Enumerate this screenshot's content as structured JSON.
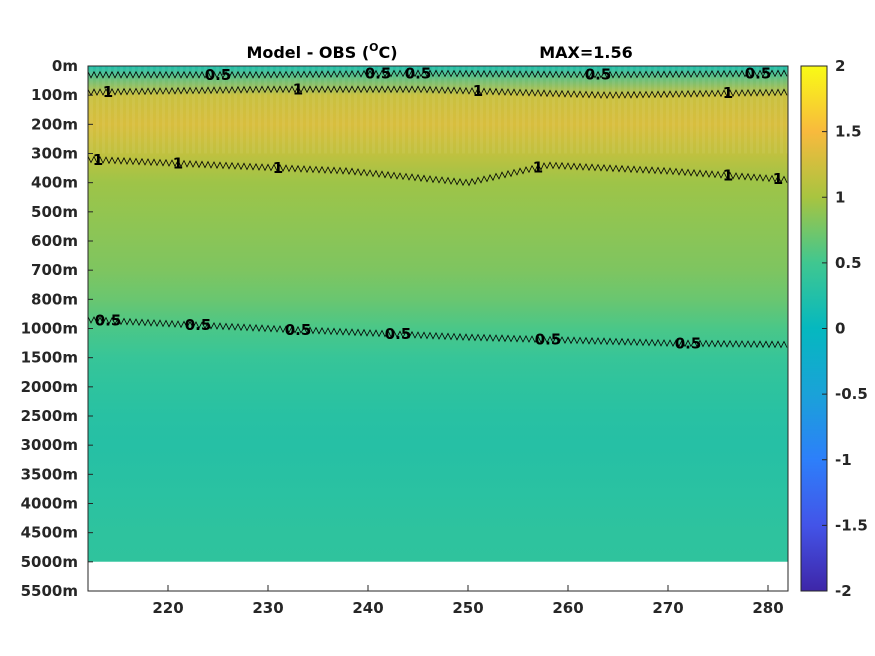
{
  "chart_data": {
    "type": "heatmap",
    "title": "Model - OBS (",
    "title_unit_sup": "O",
    "title_unit": "C)",
    "max_label": "MAX=1.56",
    "xlim": [
      212,
      282
    ],
    "x_ticks": [
      220,
      230,
      240,
      250,
      260,
      270,
      280
    ],
    "y_ticks": [
      "0m",
      "100m",
      "200m",
      "300m",
      "400m",
      "500m",
      "600m",
      "700m",
      "800m",
      "1000m",
      "1500m",
      "2000m",
      "2500m",
      "3000m",
      "3500m",
      "4000m",
      "4500m",
      "5000m",
      "5500m"
    ],
    "colorbar": {
      "min": -2,
      "max": 2,
      "ticks": [
        "2",
        "1.5",
        "1",
        "0.5",
        "0",
        "-0.5",
        "-1",
        "-1.5",
        "-2"
      ]
    },
    "depth_profile": [
      {
        "depth": "0m",
        "value": 0.2
      },
      {
        "depth": "100m",
        "value": 1.2
      },
      {
        "depth": "200m",
        "value": 1.3
      },
      {
        "depth": "300m",
        "value": 1.15
      },
      {
        "depth": "400m",
        "value": 0.95
      },
      {
        "depth": "500m",
        "value": 0.9
      },
      {
        "depth": "600m",
        "value": 0.85
      },
      {
        "depth": "700m",
        "value": 0.8
      },
      {
        "depth": "800m",
        "value": 0.7
      },
      {
        "depth": "1000m",
        "value": 0.55
      },
      {
        "depth": "1500m",
        "value": 0.42
      },
      {
        "depth": "2000m",
        "value": 0.35
      },
      {
        "depth": "2500m",
        "value": 0.3
      },
      {
        "depth": "3000m",
        "value": 0.28
      },
      {
        "depth": "3500m",
        "value": 0.3
      },
      {
        "depth": "4000m",
        "value": 0.32
      },
      {
        "depth": "4500m",
        "value": 0.35
      },
      {
        "depth": "5000m",
        "value": 0.36
      }
    ],
    "contours": [
      {
        "level_label": "0.5",
        "x": [
          212,
          230,
          245,
          264,
          282
        ],
        "depth_index": [
          0.3,
          0.3,
          0.25,
          0.3,
          0.25
        ],
        "labels_at": [
          225,
          241,
          245,
          263,
          279
        ]
      },
      {
        "level_label": "1",
        "x": [
          212,
          230,
          245,
          264,
          282
        ],
        "depth_index": [
          0.9,
          0.8,
          0.8,
          1.0,
          0.9
        ],
        "labels_at": [
          214,
          233,
          251,
          276
        ]
      },
      {
        "level_label": "1",
        "x": [
          212,
          225,
          238,
          250,
          258,
          270,
          282
        ],
        "depth_index": [
          3.2,
          3.4,
          3.6,
          4.0,
          3.4,
          3.6,
          3.9
        ],
        "labels_at": [
          213,
          221,
          231,
          257,
          276,
          281
        ]
      },
      {
        "level_label": "0.5",
        "x": [
          212,
          230,
          250,
          270,
          282
        ],
        "depth_index": [
          8.7,
          9.0,
          9.3,
          9.5,
          9.55
        ],
        "labels_at": [
          214,
          223,
          233,
          243,
          258,
          272
        ]
      }
    ]
  }
}
